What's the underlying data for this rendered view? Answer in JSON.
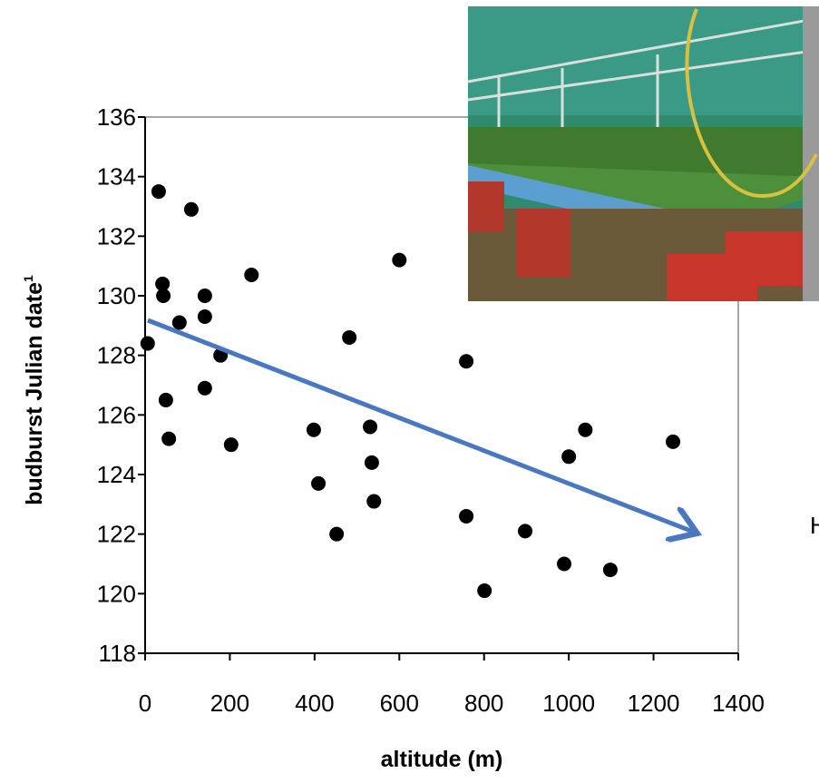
{
  "chart_data": {
    "type": "scatter",
    "x_label": "altitude (m)",
    "y_label": "budburst Julian date",
    "y_label_superscript": "1",
    "side_text": "H",
    "color": "#000000",
    "x": [
      6,
      32,
      41,
      43,
      49,
      56,
      81,
      109,
      141,
      141,
      141,
      178,
      203,
      251,
      398,
      409,
      452,
      482,
      531,
      535,
      540,
      600,
      758,
      758,
      801,
      897,
      989,
      1000,
      1039,
      1098,
      1246
    ],
    "values": [
      128.4,
      133.5,
      130.4,
      130.0,
      126.5,
      125.2,
      129.1,
      132.9,
      129.3,
      130.0,
      126.9,
      128.0,
      125.0,
      130.7,
      125.5,
      123.7,
      122.0,
      128.6,
      125.6,
      124.4,
      123.1,
      131.2,
      127.8,
      122.6,
      120.1,
      122.1,
      121.0,
      124.6,
      125.5,
      120.8,
      125.1
    ],
    "xlim": [
      0,
      1400
    ],
    "xticks": [
      0,
      200,
      400,
      600,
      800,
      1000,
      1200,
      1400
    ],
    "ylim": [
      118,
      136
    ],
    "yticks": [
      118,
      120,
      122,
      124,
      126,
      128,
      130,
      132,
      134,
      136
    ]
  }
}
